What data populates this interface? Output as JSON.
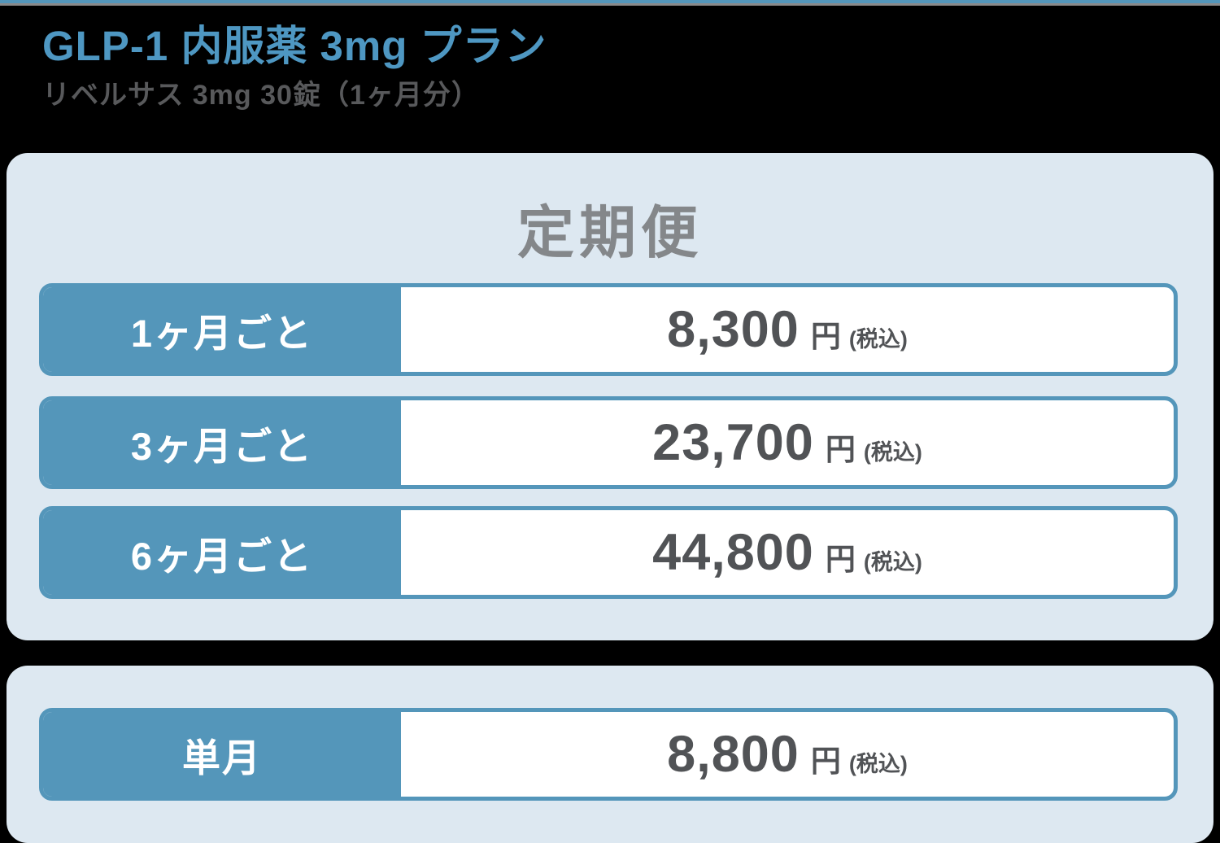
{
  "header": {
    "title": "GLP-1 内服薬 3mg プラン",
    "subtitle": "リベルサス 3mg 30錠（1ヶ月分）"
  },
  "subscription": {
    "header": "定期便",
    "rows": [
      {
        "label": "1ヶ月ごと",
        "price": "8,300",
        "unit": "円",
        "tax_note": "(税込)"
      },
      {
        "label": "3ヶ月ごと",
        "price": "23,700",
        "unit": "円",
        "tax_note": "(税込)"
      },
      {
        "label": "6ヶ月ごと",
        "price": "44,800",
        "unit": "円",
        "tax_note": "(税込)"
      }
    ]
  },
  "single": {
    "rows": [
      {
        "label": "単月",
        "price": "8,800",
        "unit": "円",
        "tax_note": "(税込)"
      }
    ]
  },
  "colors": {
    "accent_blue": "#5496BA",
    "title_blue": "#4E97C2",
    "panel_light_blue": "#DDE8F1",
    "price_text": "#515356",
    "heading_gray": "#84878A",
    "background": "#000000"
  }
}
